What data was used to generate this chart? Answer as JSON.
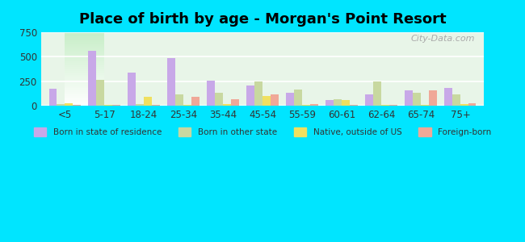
{
  "title": "Place of birth by age - Morgan's Point Resort",
  "categories": [
    "<5",
    "5-17",
    "18-24",
    "25-34",
    "35-44",
    "45-54",
    "55-59",
    "60-61",
    "62-64",
    "65-74",
    "75+"
  ],
  "series": {
    "Born in state of residence": [
      175,
      560,
      335,
      490,
      260,
      205,
      135,
      60,
      120,
      160,
      185
    ],
    "Born in other state": [
      20,
      265,
      20,
      120,
      135,
      245,
      165,
      65,
      245,
      135,
      115
    ],
    "Native, outside of US": [
      25,
      5,
      90,
      5,
      15,
      100,
      10,
      55,
      5,
      10,
      15
    ],
    "Foreign-born": [
      10,
      10,
      10,
      90,
      65,
      115,
      15,
      10,
      10,
      155,
      25
    ]
  },
  "colors": {
    "Born in state of residence": "#c8a8e8",
    "Born in other state": "#c8d8a0",
    "Native, outside of US": "#f0e060",
    "Foreign-born": "#f0a898"
  },
  "ylim": [
    0,
    750
  ],
  "yticks": [
    0,
    250,
    500,
    750
  ],
  "background_color": "#e8fff8",
  "plot_bg_gradient_top": "#ffffff",
  "plot_bg_gradient_bottom": "#d0f0d0",
  "outer_bg": "#00e5ff",
  "watermark": "City-Data.com",
  "bar_width": 0.2
}
